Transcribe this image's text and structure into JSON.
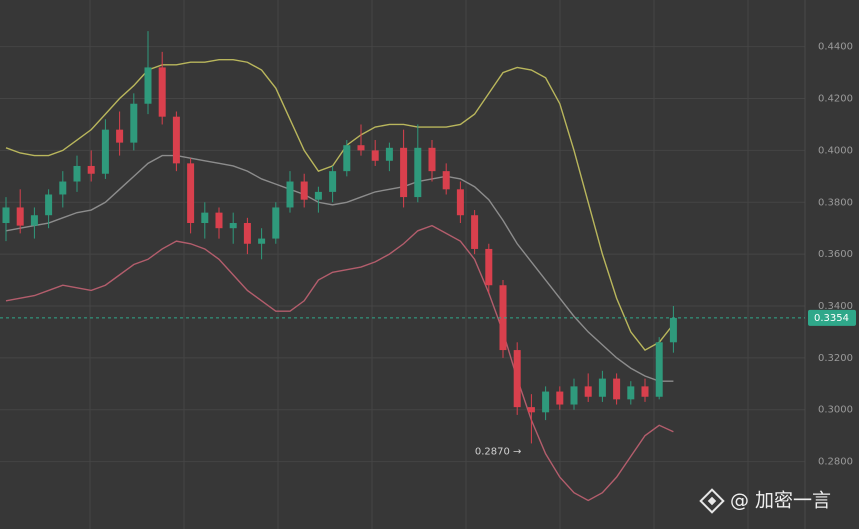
{
  "chart_data": {
    "type": "candlestick",
    "open": [
      0.372,
      0.378,
      0.371,
      0.375,
      0.383,
      0.388,
      0.394,
      0.391,
      0.408,
      0.403,
      0.418,
      0.432,
      0.413,
      0.395,
      0.372,
      0.376,
      0.37,
      0.372,
      0.364,
      0.366,
      0.378,
      0.388,
      0.381,
      0.384,
      0.392,
      0.402,
      0.4,
      0.396,
      0.401,
      0.382,
      0.401,
      0.392,
      0.385,
      0.375,
      0.362,
      0.348,
      0.323,
      0.301,
      0.299,
      0.307,
      0.302,
      0.309,
      0.305,
      0.312,
      0.304,
      0.309,
      0.305,
      0.326
    ],
    "high": [
      0.382,
      0.385,
      0.378,
      0.385,
      0.392,
      0.398,
      0.4,
      0.412,
      0.415,
      0.422,
      0.446,
      0.438,
      0.415,
      0.397,
      0.38,
      0.378,
      0.376,
      0.374,
      0.37,
      0.38,
      0.392,
      0.391,
      0.386,
      0.394,
      0.404,
      0.41,
      0.404,
      0.403,
      0.408,
      0.41,
      0.404,
      0.395,
      0.388,
      0.377,
      0.364,
      0.35,
      0.326,
      0.306,
      0.309,
      0.309,
      0.312,
      0.314,
      0.315,
      0.314,
      0.311,
      0.312,
      0.328,
      0.34
    ],
    "low": [
      0.365,
      0.368,
      0.366,
      0.37,
      0.378,
      0.384,
      0.388,
      0.389,
      0.398,
      0.4,
      0.414,
      0.41,
      0.392,
      0.368,
      0.366,
      0.366,
      0.364,
      0.36,
      0.358,
      0.364,
      0.376,
      0.378,
      0.376,
      0.38,
      0.39,
      0.398,
      0.394,
      0.392,
      0.378,
      0.38,
      0.388,
      0.383,
      0.372,
      0.36,
      0.345,
      0.32,
      0.298,
      0.287,
      0.296,
      0.3,
      0.3,
      0.303,
      0.303,
      0.302,
      0.302,
      0.303,
      0.304,
      0.322
    ],
    "close": [
      0.378,
      0.371,
      0.375,
      0.383,
      0.388,
      0.394,
      0.391,
      0.408,
      0.403,
      0.418,
      0.432,
      0.413,
      0.395,
      0.372,
      0.376,
      0.37,
      0.372,
      0.364,
      0.366,
      0.378,
      0.388,
      0.381,
      0.384,
      0.392,
      0.402,
      0.4,
      0.396,
      0.401,
      0.382,
      0.401,
      0.392,
      0.385,
      0.375,
      0.362,
      0.348,
      0.323,
      0.301,
      0.299,
      0.307,
      0.302,
      0.309,
      0.305,
      0.312,
      0.304,
      0.309,
      0.305,
      0.326,
      0.3354
    ],
    "up_color": "#2f9a7c",
    "down_color": "#d9404d",
    "series": [
      {
        "color": "#b9b65c",
        "values": [
          0.401,
          0.399,
          0.398,
          0.398,
          0.4,
          0.404,
          0.408,
          0.414,
          0.42,
          0.425,
          0.431,
          0.433,
          0.433,
          0.434,
          0.434,
          0.435,
          0.435,
          0.434,
          0.431,
          0.424,
          0.412,
          0.4,
          0.392,
          0.394,
          0.402,
          0.406,
          0.409,
          0.41,
          0.41,
          0.409,
          0.409,
          0.409,
          0.41,
          0.414,
          0.422,
          0.43,
          0.432,
          0.431,
          0.428,
          0.418,
          0.4,
          0.38,
          0.36,
          0.343,
          0.33,
          0.323,
          0.326,
          0.333
        ]
      },
      {
        "color": "#8c8c8c",
        "values": [
          0.369,
          0.37,
          0.371,
          0.372,
          0.374,
          0.376,
          0.377,
          0.38,
          0.385,
          0.39,
          0.395,
          0.398,
          0.398,
          0.397,
          0.396,
          0.395,
          0.394,
          0.392,
          0.389,
          0.387,
          0.385,
          0.383,
          0.38,
          0.379,
          0.38,
          0.382,
          0.384,
          0.385,
          0.386,
          0.388,
          0.389,
          0.39,
          0.389,
          0.386,
          0.381,
          0.373,
          0.364,
          0.357,
          0.35,
          0.343,
          0.336,
          0.33,
          0.325,
          0.32,
          0.316,
          0.313,
          0.311,
          0.311
        ]
      },
      {
        "color": "#b35d6c",
        "values": [
          0.342,
          0.343,
          0.344,
          0.346,
          0.348,
          0.347,
          0.346,
          0.348,
          0.352,
          0.356,
          0.358,
          0.362,
          0.365,
          0.364,
          0.362,
          0.358,
          0.352,
          0.346,
          0.342,
          0.338,
          0.338,
          0.342,
          0.35,
          0.353,
          0.354,
          0.355,
          0.357,
          0.36,
          0.364,
          0.369,
          0.371,
          0.368,
          0.365,
          0.358,
          0.345,
          0.33,
          0.312,
          0.296,
          0.283,
          0.274,
          0.268,
          0.265,
          0.268,
          0.274,
          0.282,
          0.29,
          0.294,
          0.2915
        ]
      }
    ],
    "ylim": [
      0.254,
      0.458
    ],
    "yticks": [
      {
        "value": 0.28,
        "label": "0.2800"
      },
      {
        "value": 0.3,
        "label": "0.3000"
      },
      {
        "value": 0.32,
        "label": "0.3200"
      },
      {
        "value": 0.34,
        "label": "0.3400"
      },
      {
        "value": 0.36,
        "label": "0.3600"
      },
      {
        "value": 0.38,
        "label": "0.3800"
      },
      {
        "value": 0.4,
        "label": "0.4000"
      },
      {
        "value": 0.42,
        "label": "0.4200"
      },
      {
        "value": 0.44,
        "label": "0.4400"
      }
    ],
    "grid": true,
    "current_price": 0.3354,
    "current_price_color": "#2fa88a",
    "annotation": "0.2870 →",
    "watermark": "@ 加密一言"
  }
}
